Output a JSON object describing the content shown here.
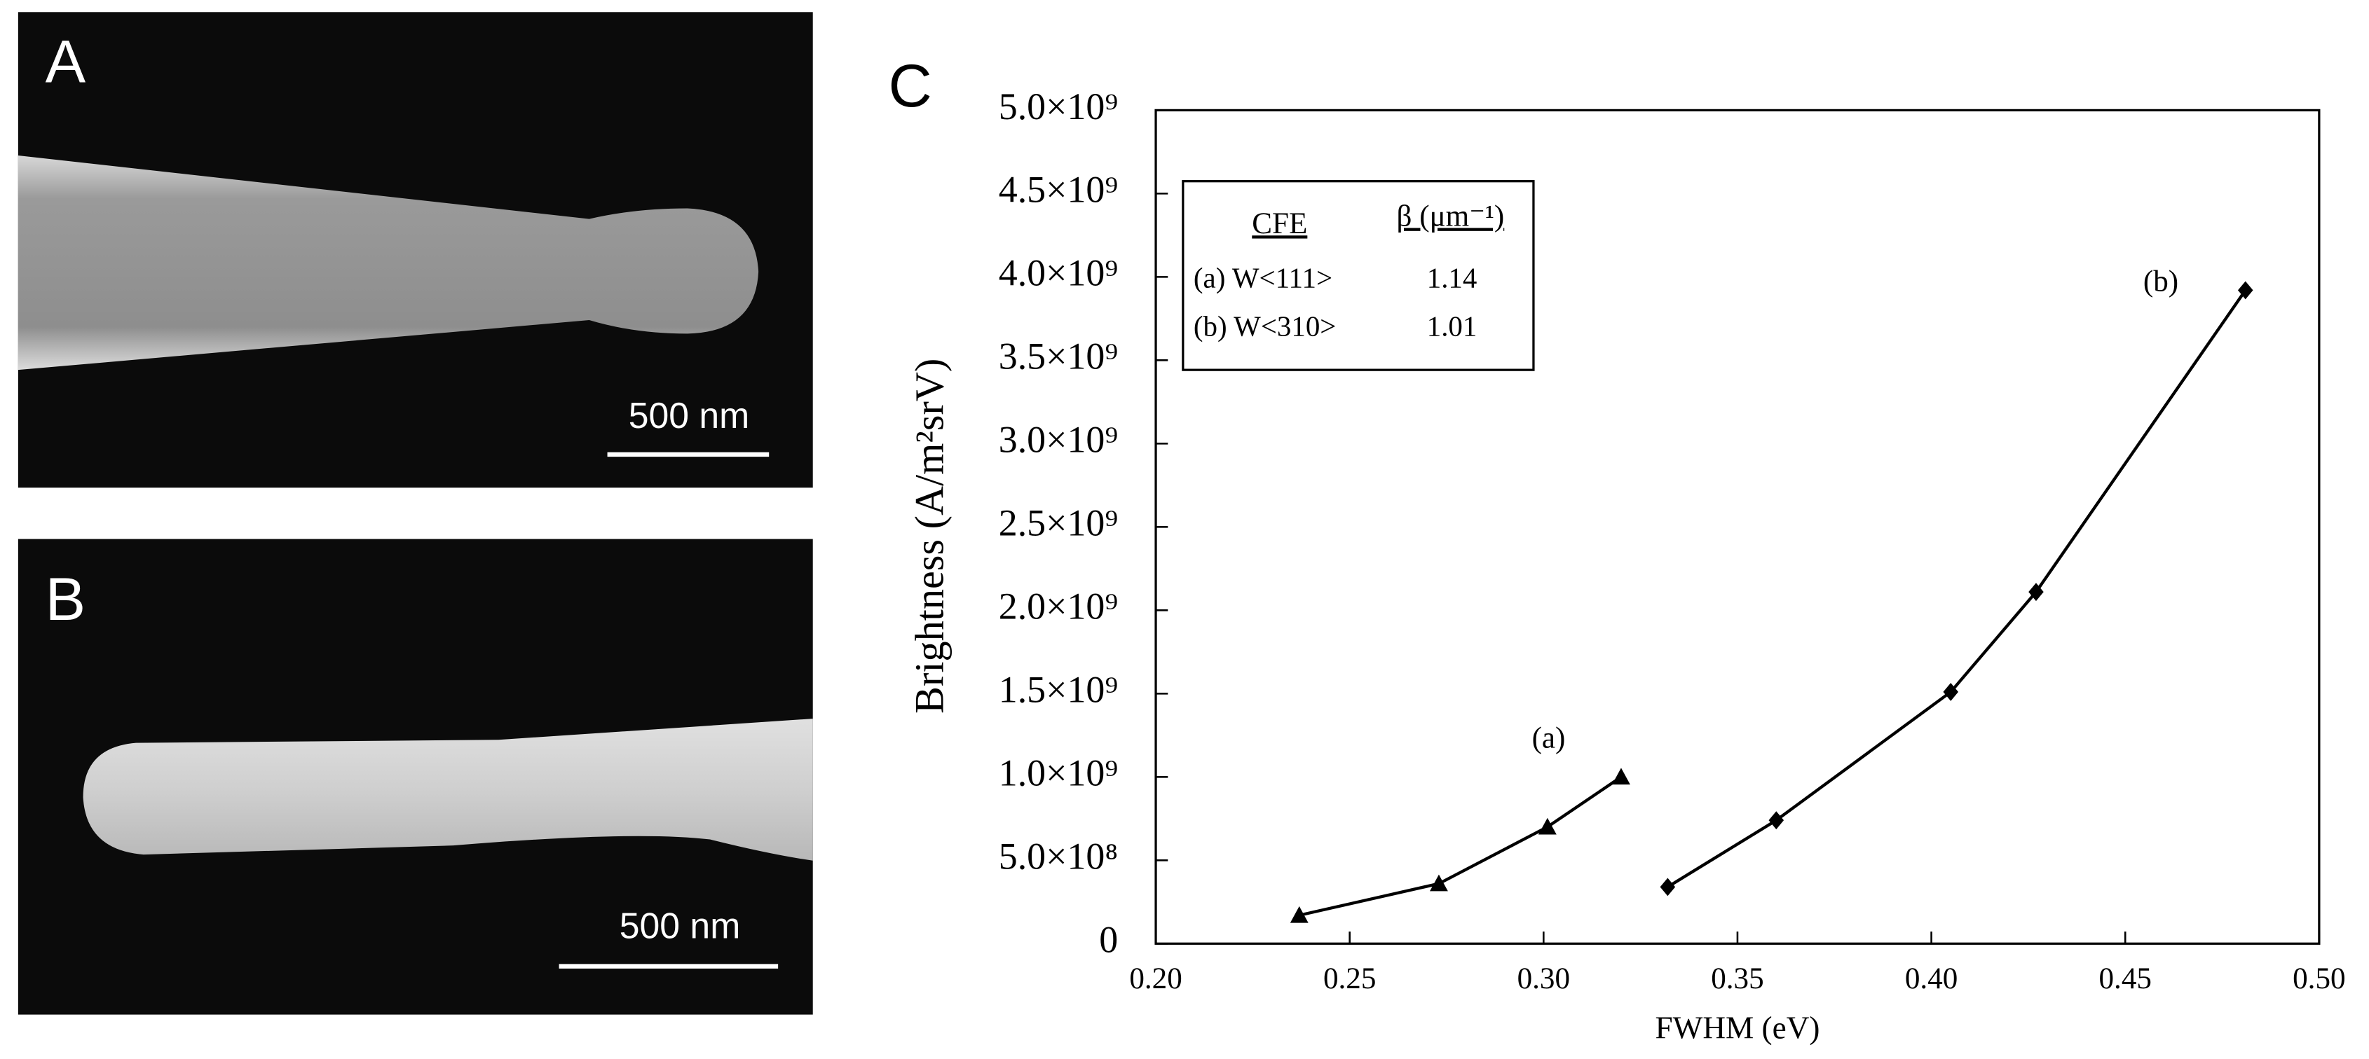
{
  "panels": [
    {
      "label": "A",
      "scale_bar": "500 nm"
    },
    {
      "label": "B",
      "scale_bar": "500 nm"
    }
  ],
  "chart_data": {
    "type": "line",
    "panel_label": "C",
    "x_label": "FWHM (eV)",
    "y_label": "Brightness (A/m²srV)",
    "xlim": [
      0.2,
      0.5
    ],
    "xticks": [
      {
        "value": 0.2,
        "label": "0.20"
      },
      {
        "value": 0.25,
        "label": "0.25"
      },
      {
        "value": 0.3,
        "label": "0.30"
      },
      {
        "value": 0.35,
        "label": "0.35"
      },
      {
        "value": 0.4,
        "label": "0.40"
      },
      {
        "value": 0.45,
        "label": "0.45"
      },
      {
        "value": 0.5,
        "label": "0.50"
      }
    ],
    "ylim": [
      0,
      5000000000
    ],
    "yticks": [
      0,
      {
        "value": 500000000,
        "label": "5.0×10⁸"
      },
      {
        "value": 1000000000,
        "label": "1.0×10⁹"
      },
      {
        "value": 1500000000,
        "label": "1.5×10⁹"
      },
      {
        "value": 2000000000,
        "label": "2.0×10⁹"
      },
      {
        "value": 2500000000,
        "label": "2.5×10⁹"
      },
      {
        "value": 3000000000,
        "label": "3.0×10⁹"
      },
      {
        "value": 3500000000,
        "label": "3.5×10⁹"
      },
      {
        "value": 4000000000,
        "label": "4.0×10⁹"
      },
      {
        "value": 4500000000,
        "label": "4.5×10⁹"
      },
      {
        "value": 5000000000,
        "label": "5.0×10⁹"
      }
    ],
    "series": [
      {
        "name": "(a)",
        "color": "#000000",
        "marker": "triangle",
        "x": [
          0.237,
          0.273,
          0.301,
          0.32
        ],
        "values": [
          170000000,
          360000000,
          700000000,
          1000000000
        ]
      },
      {
        "name": "(b)",
        "color": "#000000",
        "marker": "diamond",
        "x": [
          0.332,
          0.36,
          0.405,
          0.427,
          0.481
        ],
        "values": [
          340000000,
          740000000,
          1510000000,
          2110000000,
          3920000000
        ]
      }
    ],
    "legend_table": {
      "headers": [
        "CFE",
        "β (μm⁻¹)"
      ],
      "rows": [
        [
          "(a) W<111>",
          1.14
        ],
        [
          "(b) W<310>",
          1.01
        ]
      ]
    }
  }
}
